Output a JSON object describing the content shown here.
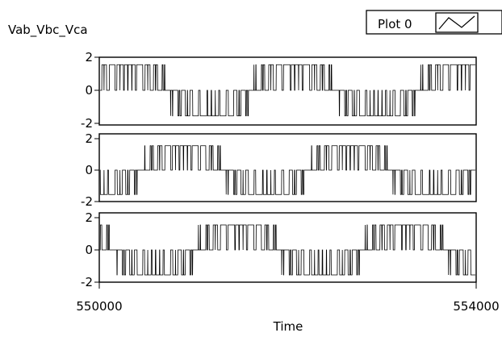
{
  "graph": {
    "title": "Vab_Vbc_Vca",
    "legend": {
      "label": "Plot 0",
      "placement": "top-right"
    }
  },
  "chart_data": {
    "type": "line",
    "title": "Vab_Vbc_Vca",
    "xlabel": "Time",
    "ylabel": "",
    "xlim": [
      550000,
      554000
    ],
    "x_ticks": [
      "550000",
      "554000"
    ],
    "legend": [
      "Plot 0"
    ],
    "series": [
      {
        "ylim": [
          -2,
          2
        ],
        "y_ticks": [
          "2",
          "0",
          "-2"
        ],
        "phase": 0
      },
      {
        "ylim": [
          -2,
          2
        ],
        "y_ticks": [
          "2",
          "0",
          "-2"
        ],
        "phase": -120
      },
      {
        "ylim": [
          -2,
          2
        ],
        "y_ticks": [
          "2",
          "0",
          "-2"
        ],
        "phase": 120
      }
    ],
    "waveform": {
      "kind": "pwm-line-voltage",
      "amplitude": 1.55,
      "fundamental_cycles": 2.25,
      "pulses_per_cycle": 42
    },
    "grid": false
  }
}
